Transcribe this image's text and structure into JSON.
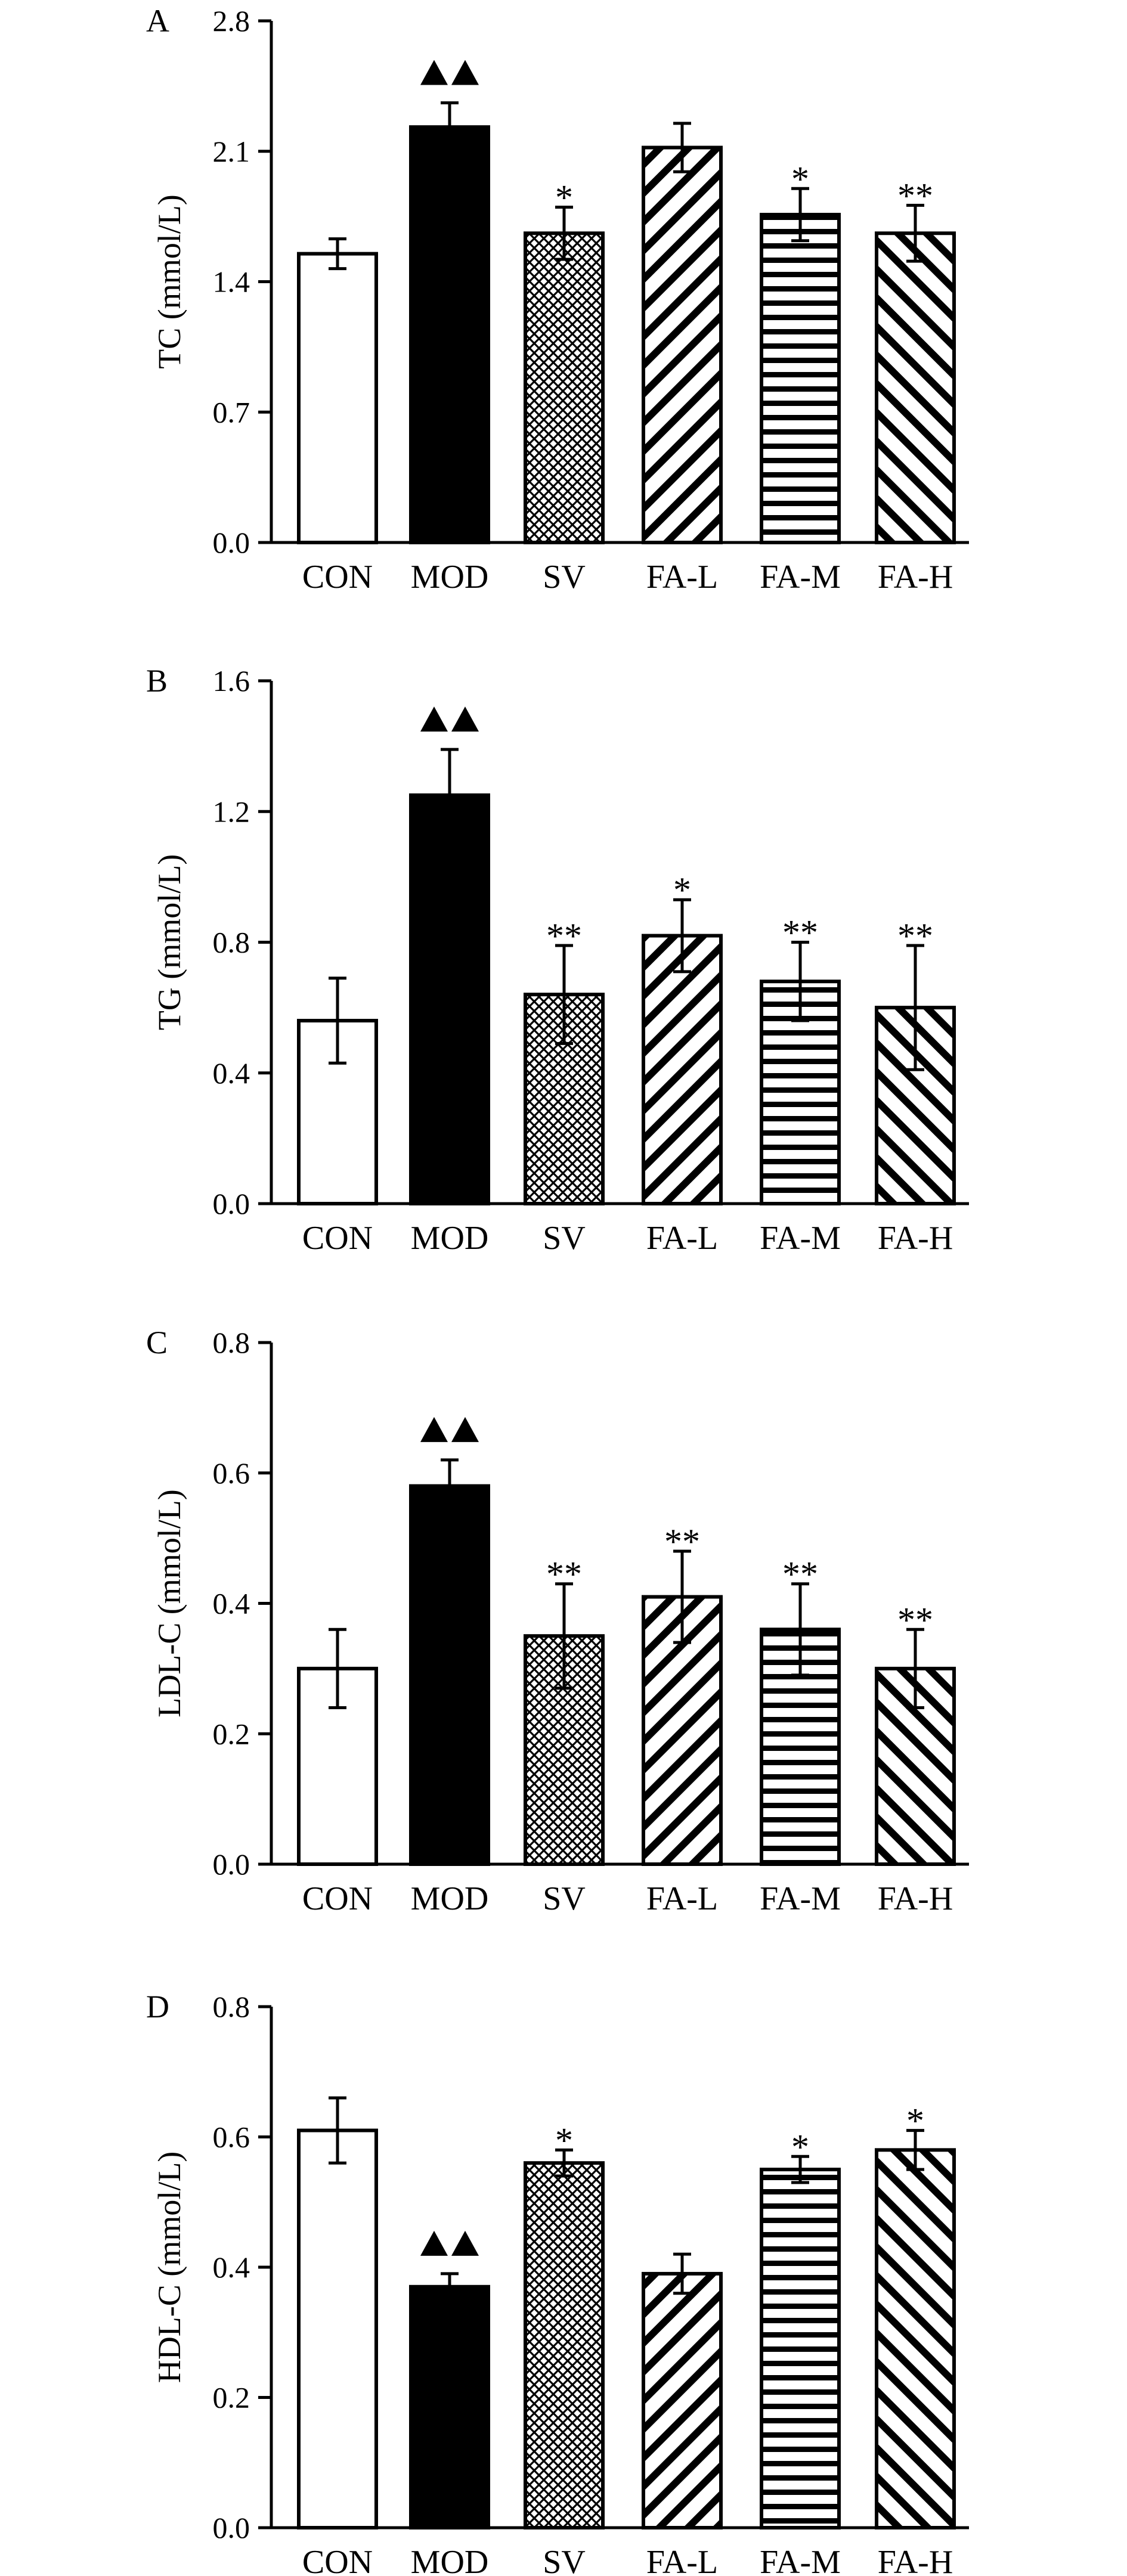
{
  "chart_data": [
    {
      "type": "bar",
      "panel": "A",
      "ylabel": "TC (mmol/L)",
      "ylim": [
        0,
        2.8
      ],
      "yticks": [
        "0.0",
        "0.7",
        "1.4",
        "2.1",
        "2.8"
      ],
      "categories": [
        "CON",
        "MOD",
        "SV",
        "FA-L",
        "FA-M",
        "FA-H"
      ],
      "values": [
        1.55,
        2.23,
        1.66,
        2.12,
        1.76,
        1.66
      ],
      "errors": [
        0.08,
        0.13,
        0.14,
        0.13,
        0.14,
        0.15
      ],
      "annotations": [
        "",
        "▲▲",
        "*",
        "",
        "*",
        "**"
      ]
    },
    {
      "type": "bar",
      "panel": "B",
      "ylabel": "TG (mmol/L)",
      "ylim": [
        0,
        1.6
      ],
      "yticks": [
        "0.0",
        "0.4",
        "0.8",
        "1.2",
        "1.6"
      ],
      "categories": [
        "CON",
        "MOD",
        "SV",
        "FA-L",
        "FA-M",
        "FA-H"
      ],
      "values": [
        0.56,
        1.25,
        0.64,
        0.82,
        0.68,
        0.6
      ],
      "errors": [
        0.13,
        0.14,
        0.15,
        0.11,
        0.12,
        0.19
      ],
      "annotations": [
        "",
        "▲▲",
        "**",
        "*",
        "**",
        "**"
      ]
    },
    {
      "type": "bar",
      "panel": "C",
      "ylabel": "LDL-C (mmol/L)",
      "ylim": [
        0,
        0.8
      ],
      "yticks": [
        "0.0",
        "0.2",
        "0.4",
        "0.6",
        "0.8"
      ],
      "categories": [
        "CON",
        "MOD",
        "SV",
        "FA-L",
        "FA-M",
        "FA-H"
      ],
      "values": [
        0.3,
        0.58,
        0.35,
        0.41,
        0.36,
        0.3
      ],
      "errors": [
        0.06,
        0.04,
        0.08,
        0.07,
        0.07,
        0.06
      ],
      "annotations": [
        "",
        "▲▲",
        "**",
        "**",
        "**",
        "**"
      ]
    },
    {
      "type": "bar",
      "panel": "D",
      "ylabel": "HDL-C (mmol/L)",
      "ylim": [
        0,
        0.8
      ],
      "yticks": [
        "0.0",
        "0.2",
        "0.4",
        "0.6",
        "0.8"
      ],
      "categories": [
        "CON",
        "MOD",
        "SV",
        "FA-L",
        "FA-M",
        "FA-H"
      ],
      "values": [
        0.61,
        0.37,
        0.56,
        0.39,
        0.55,
        0.58
      ],
      "errors": [
        0.05,
        0.02,
        0.02,
        0.03,
        0.02,
        0.03
      ],
      "annotations": [
        "",
        "▲▲",
        "*",
        "",
        "*",
        "*"
      ]
    }
  ],
  "bar_fills": {
    "CON": "white",
    "MOD": "solid-black",
    "SV": "crosshatch",
    "FA-L": "diagonal-stripes-down",
    "FA-M": "horizontal-stripes",
    "FA-H": "diagonal-stripes-up"
  },
  "colors": {
    "ink": "#000000",
    "background": "#ffffff"
  }
}
